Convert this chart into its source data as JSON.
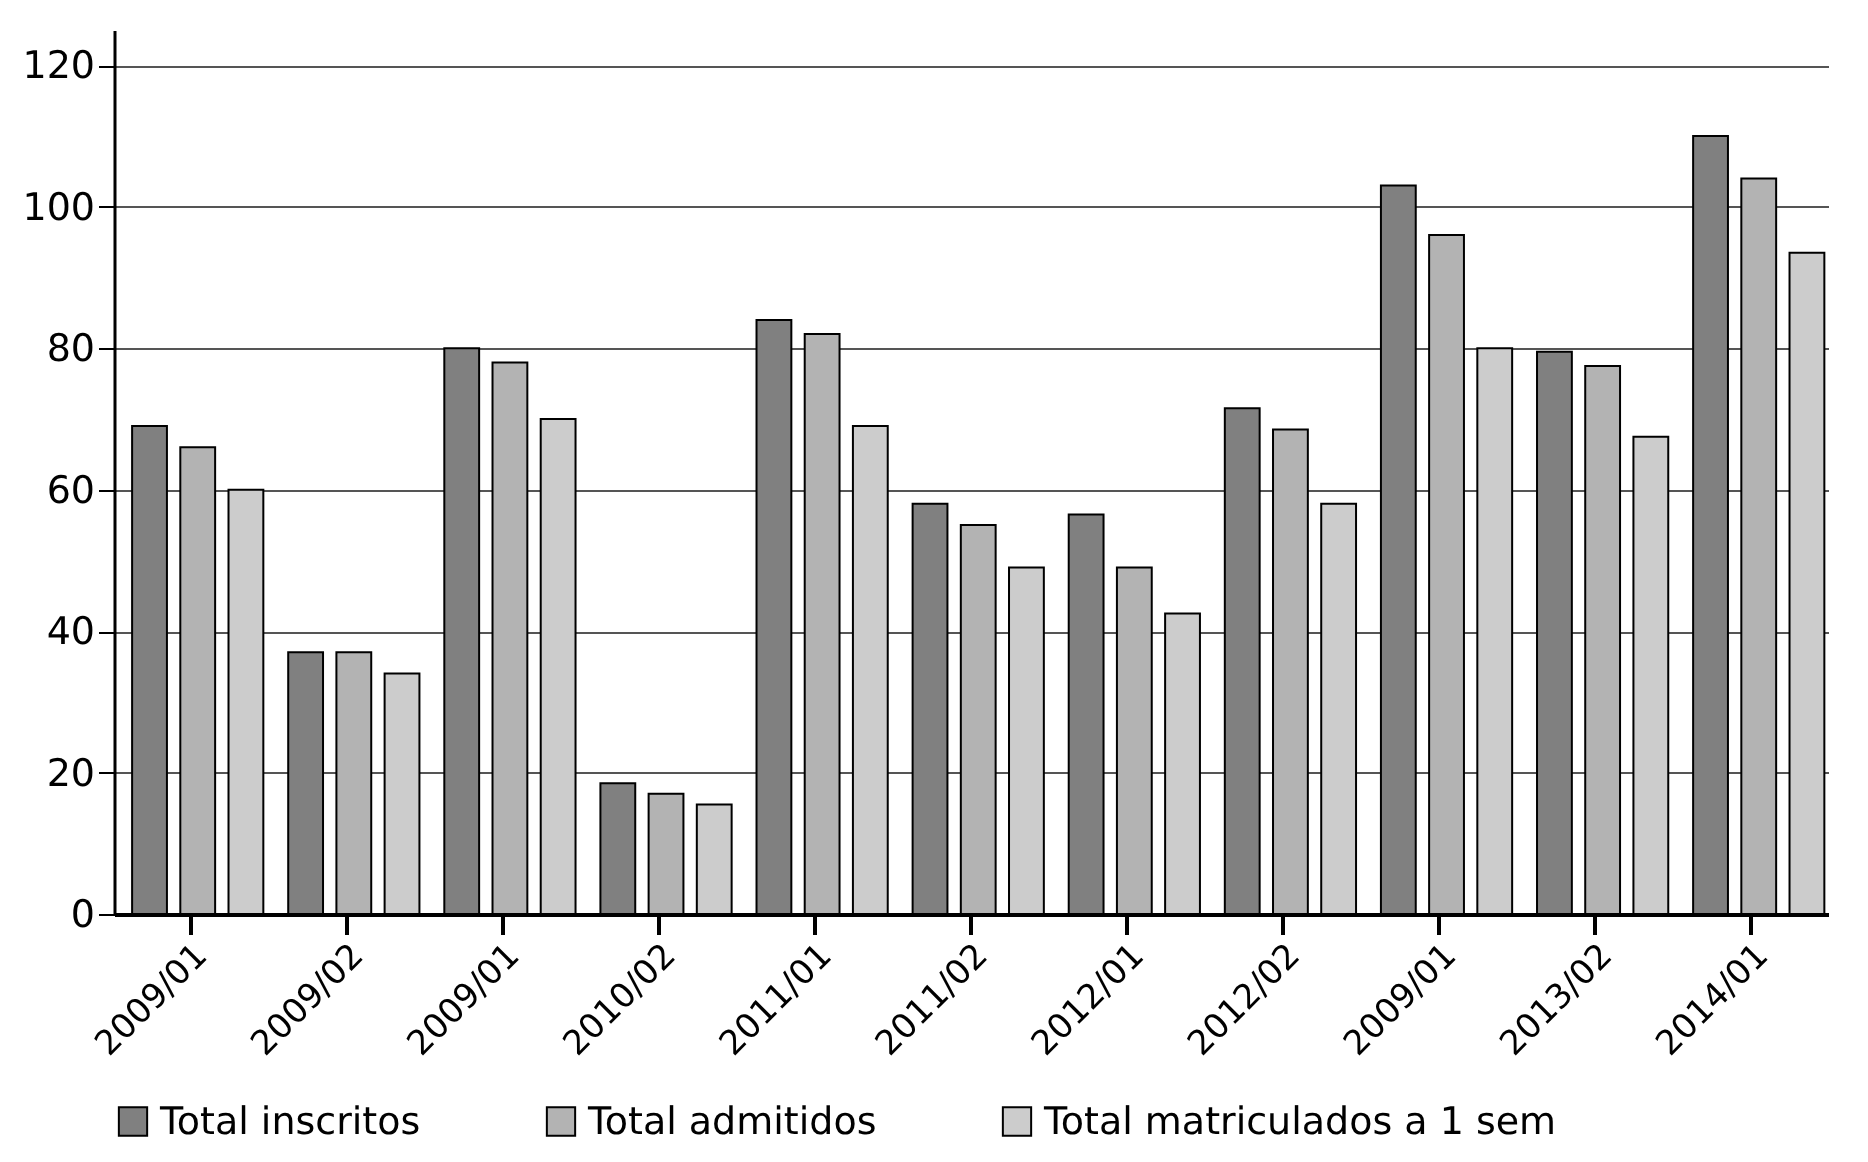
{
  "chart_data": {
    "type": "bar",
    "categories": [
      "2009/01",
      "2009/02",
      "2009/01",
      "2010/02",
      "2011/01",
      "2011/02",
      "2012/01",
      "2012/02",
      "2009/01",
      "2013/02",
      "2014/01"
    ],
    "series": [
      {
        "name": "Total inscritos",
        "color": "#808080",
        "values": [
          69,
          37,
          80,
          18.5,
          84,
          58,
          56.5,
          71.5,
          103,
          79.5,
          110
        ]
      },
      {
        "name": "Total admitidos",
        "color": "#b3b3b3",
        "values": [
          66,
          37,
          78,
          17,
          82,
          55,
          49,
          68.5,
          96,
          77.5,
          104
        ]
      },
      {
        "name": "Total matriculados a 1 sem",
        "color": "#cccccc",
        "values": [
          60,
          34,
          70,
          15.5,
          69,
          49,
          42.5,
          58,
          80,
          67.5,
          93.5
        ]
      }
    ],
    "ylim": [
      0,
      125
    ],
    "yticks": [
      0,
      20,
      40,
      60,
      80,
      100,
      120
    ],
    "grid": "y",
    "legend": "bottom"
  }
}
